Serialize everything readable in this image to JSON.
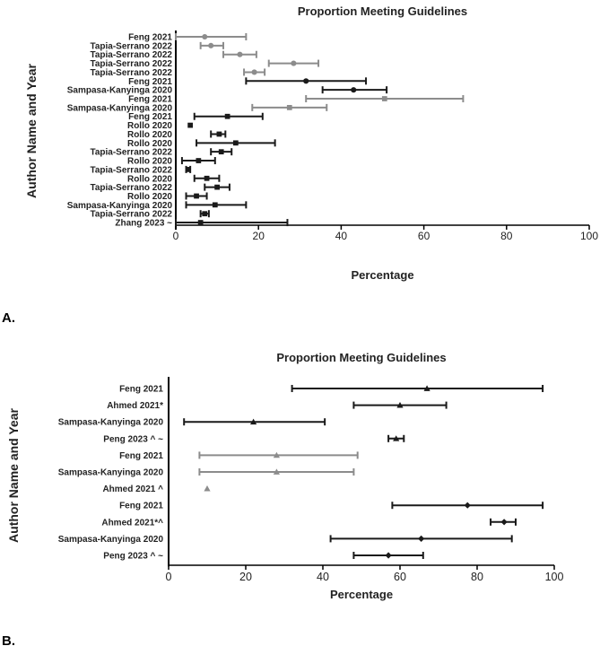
{
  "figure": {
    "panel_a_label": "A.",
    "panel_b_label": "B."
  },
  "chart_data": [
    {
      "panel": "A",
      "type": "forest",
      "title": "Proportion Meeting Guidelines",
      "xlabel": "Percentage",
      "ylabel": "Author Name and Year",
      "xlim": [
        0,
        100
      ],
      "xticks": [
        0,
        20,
        40,
        60,
        80,
        100
      ],
      "grid": false,
      "colors": {
        "gray": "#8c8c8c",
        "black": "#1a1a1a"
      },
      "rows": [
        {
          "label": "Feng 2021",
          "est": 7,
          "lo": 0,
          "hi": 17,
          "color": "gray",
          "marker": "circle"
        },
        {
          "label": "Tapia-Serrano 2022",
          "est": 8.5,
          "lo": 6,
          "hi": 11.5,
          "color": "gray",
          "marker": "circle"
        },
        {
          "label": "Tapia-Serrano 2022",
          "est": 15.5,
          "lo": 11.5,
          "hi": 19.5,
          "color": "gray",
          "marker": "circle"
        },
        {
          "label": "Tapia-Serrano 2022",
          "est": 28.5,
          "lo": 22.5,
          "hi": 34.5,
          "color": "gray",
          "marker": "circle"
        },
        {
          "label": "Tapia-Serrano 2022",
          "est": 19,
          "lo": 16.5,
          "hi": 21.5,
          "color": "gray",
          "marker": "circle"
        },
        {
          "label": "Feng 2021",
          "est": 31.5,
          "lo": 17,
          "hi": 46,
          "color": "black",
          "marker": "circle"
        },
        {
          "label": "Sampasa-Kanyinga 2020",
          "est": 43,
          "lo": 35.5,
          "hi": 51,
          "color": "black",
          "marker": "circle"
        },
        {
          "label": "Feng 2021",
          "est": 50.5,
          "lo": 31.5,
          "hi": 69.5,
          "color": "gray",
          "marker": "square"
        },
        {
          "label": "Sampasa-Kanyinga 2020",
          "est": 27.5,
          "lo": 18.5,
          "hi": 36.5,
          "color": "gray",
          "marker": "square"
        },
        {
          "label": "Feng 2021",
          "est": 12.5,
          "lo": 4.5,
          "hi": 21,
          "color": "black",
          "marker": "square"
        },
        {
          "label": "Rollo 2020",
          "est": 3.5,
          "lo": 3.5,
          "hi": 3.5,
          "color": "black",
          "marker": "square"
        },
        {
          "label": "Rollo 2020",
          "est": 10.5,
          "lo": 8.5,
          "hi": 12,
          "color": "black",
          "marker": "square"
        },
        {
          "label": "Rollo 2020",
          "est": 14.5,
          "lo": 5,
          "hi": 24,
          "color": "black",
          "marker": "square"
        },
        {
          "label": "Tapia-Serrano 2022",
          "est": 11,
          "lo": 8.5,
          "hi": 13.5,
          "color": "black",
          "marker": "square"
        },
        {
          "label": "Rollo 2020",
          "est": 5.5,
          "lo": 1.5,
          "hi": 9.5,
          "color": "black",
          "marker": "square"
        },
        {
          "label": "Tapia-Serrano 2022",
          "est": 3,
          "lo": 2.5,
          "hi": 3.5,
          "color": "black",
          "marker": "square"
        },
        {
          "label": "Rollo 2020",
          "est": 7.5,
          "lo": 4.5,
          "hi": 10.5,
          "color": "black",
          "marker": "square"
        },
        {
          "label": "Tapia-Serrano 2022",
          "est": 10,
          "lo": 7,
          "hi": 13,
          "color": "black",
          "marker": "square"
        },
        {
          "label": "Rollo 2020",
          "est": 5,
          "lo": 2.5,
          "hi": 7.5,
          "color": "black",
          "marker": "square"
        },
        {
          "label": "Sampasa-Kanyinga 2020",
          "est": 9.5,
          "lo": 2.5,
          "hi": 17,
          "color": "black",
          "marker": "square"
        },
        {
          "label": "Tapia-Serrano 2022",
          "est": 7,
          "lo": 6,
          "hi": 8,
          "color": "black",
          "marker": "square"
        },
        {
          "label": "Zhang 2023 ~",
          "est": 6,
          "lo": 0,
          "hi": 27,
          "color": "black",
          "marker": "square"
        }
      ]
    },
    {
      "panel": "B",
      "type": "forest",
      "title": "Proportion Meeting Guidelines",
      "xlabel": "Percentage",
      "ylabel": "Author Name and Year",
      "xlim": [
        0,
        100
      ],
      "xticks": [
        0,
        20,
        40,
        60,
        80,
        100
      ],
      "grid": false,
      "colors": {
        "gray": "#8c8c8c",
        "black": "#1a1a1a"
      },
      "rows": [
        {
          "label": "Feng 2021",
          "est": 67,
          "lo": 32,
          "hi": 97,
          "color": "black",
          "marker": "triangle"
        },
        {
          "label": "Ahmed 2021*",
          "est": 60,
          "lo": 48,
          "hi": 72,
          "color": "black",
          "marker": "triangle"
        },
        {
          "label": "Sampasa-Kanyinga 2020",
          "est": 22,
          "lo": 4,
          "hi": 40.5,
          "color": "black",
          "marker": "triangle"
        },
        {
          "label": "Peng 2023 ^ ~",
          "est": 59,
          "lo": 57,
          "hi": 61,
          "color": "black",
          "marker": "triangle"
        },
        {
          "label": "Feng 2021",
          "est": 28,
          "lo": 8,
          "hi": 49,
          "color": "gray",
          "marker": "triangle"
        },
        {
          "label": "Sampasa-Kanyinga 2020",
          "est": 28,
          "lo": 8,
          "hi": 48,
          "color": "gray",
          "marker": "triangle"
        },
        {
          "label": "Ahmed 2021 ^",
          "est": 10,
          "lo": 10,
          "hi": 10,
          "color": "gray",
          "marker": "triangle"
        },
        {
          "label": "Feng 2021",
          "est": 77.5,
          "lo": 58,
          "hi": 97,
          "color": "black",
          "marker": "diamond"
        },
        {
          "label": "Ahmed 2021*^",
          "est": 87,
          "lo": 83.5,
          "hi": 90,
          "color": "black",
          "marker": "diamond"
        },
        {
          "label": "Sampasa-Kanyinga 2020",
          "est": 65.5,
          "lo": 42,
          "hi": 89,
          "color": "black",
          "marker": "diamond"
        },
        {
          "label": "Peng 2023 ^ ~",
          "est": 57,
          "lo": 48,
          "hi": 66,
          "color": "black",
          "marker": "diamond"
        }
      ]
    }
  ]
}
